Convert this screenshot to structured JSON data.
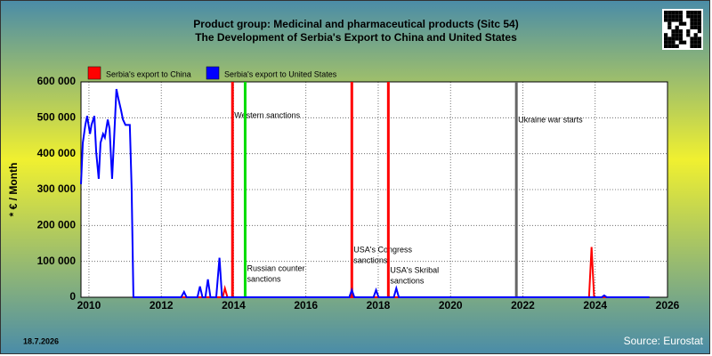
{
  "chart_data": {
    "type": "line",
    "title": "Product group: Medicinal and pharmaceutical products (Sitc 54)",
    "subtitle": "The Development of Serbia's Export to  China and United States",
    "y_label": "* € / Month",
    "date": "18.7.2026",
    "source": "Source: Eurostat",
    "xlim": [
      2009.78,
      2026
    ],
    "ylim": [
      0,
      600000
    ],
    "xticks": [
      2010,
      2012,
      2014,
      2016,
      2018,
      2020,
      2022,
      2024,
      2026
    ],
    "yticks": [
      0,
      {
        "value": 100000,
        "label": "100 000"
      },
      {
        "value": 200000,
        "label": "200 000"
      },
      {
        "value": 300000,
        "label": "300 000"
      },
      {
        "value": 400000,
        "label": "400 000"
      },
      {
        "value": 500000,
        "label": "500 000"
      },
      {
        "value": 600000,
        "label": "600 000"
      }
    ],
    "grid": true,
    "series": [
      {
        "name": "Serbia's export to China",
        "color": "#ff0000",
        "x": [
          2011.2,
          2013.7,
          2013.76,
          2013.83,
          2023.83,
          2023.9,
          2023.97,
          2025.5
        ],
        "values": [
          0,
          0,
          25000,
          0,
          0,
          140000,
          0,
          0
        ]
      },
      {
        "name": "Serbia's export to United States",
        "color": "#0000ff",
        "x": [
          2009.78,
          2009.83,
          2009.9,
          2009.95,
          2010.03,
          2010.07,
          2010.15,
          2010.2,
          2010.27,
          2010.32,
          2010.39,
          2010.44,
          2010.52,
          2010.57,
          2010.64,
          2010.69,
          2010.76,
          2010.81,
          2010.89,
          2010.94,
          2011.01,
          2011.06,
          2011.13,
          2011.18,
          2011.23,
          2012.55,
          2012.63,
          2012.7,
          2013.0,
          2013.07,
          2013.14,
          2013.22,
          2013.29,
          2013.36,
          2013.52,
          2013.61,
          2013.68,
          2017.2,
          2017.27,
          2017.34,
          2017.87,
          2017.94,
          2018.01,
          2018.43,
          2018.5,
          2018.57,
          2024.18,
          2024.25,
          2024.32,
          2025.5
        ],
        "values": [
          315000,
          430000,
          480000,
          505000,
          455000,
          480000,
          505000,
          405000,
          330000,
          430000,
          455000,
          445000,
          495000,
          470000,
          330000,
          430000,
          580000,
          555000,
          520000,
          495000,
          480000,
          480000,
          480000,
          305000,
          0,
          0,
          15000,
          0,
          0,
          30000,
          0,
          0,
          50000,
          0,
          0,
          110000,
          0,
          0,
          20000,
          0,
          0,
          20000,
          0,
          0,
          25000,
          0,
          0,
          5000,
          0,
          0
        ]
      }
    ],
    "events": [
      {
        "x": 2013.97,
        "color": "#ff0000",
        "label": [
          "Western sanctions"
        ]
      },
      {
        "x": 2014.32,
        "color": "#00dd00",
        "label": [
          "Russian counter",
          "sanctions"
        ]
      },
      {
        "x": 2017.27,
        "color": "#ff0000",
        "label": [
          "USA's Congress",
          "sanctions"
        ]
      },
      {
        "x": 2018.28,
        "color": "#ff0000",
        "label": [
          "USA's Skribal",
          "sanctions"
        ]
      },
      {
        "x": 2021.82,
        "color": "#666666",
        "label": [
          "Ukraine war starts"
        ]
      }
    ]
  }
}
